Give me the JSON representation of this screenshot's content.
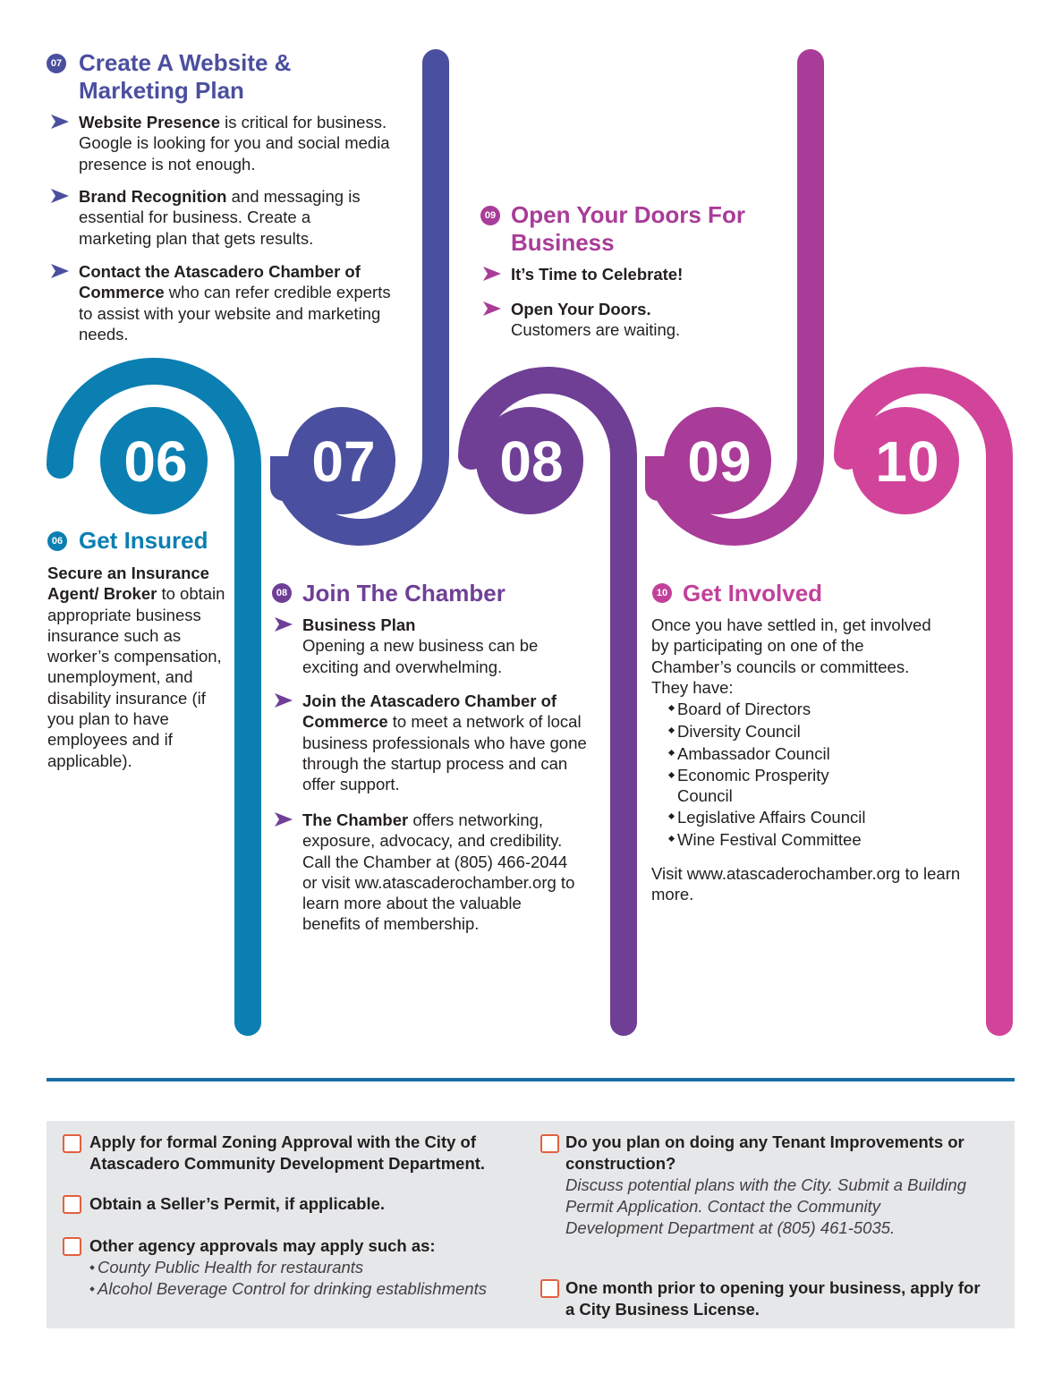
{
  "sections": [
    {
      "badge": "07",
      "title": "Create A Website & Marketing Plan",
      "items": [
        {
          "lead": "Website Presence",
          "text": "is critical for business. Google is looking for you and social media presence is not enough."
        },
        {
          "lead": "Brand Recognition",
          "text": "and messaging is essential for business. Create a marketing plan that gets results."
        },
        {
          "lead": "Contact the Atascadero Chamber of Commerce",
          "text": "who can refer credible experts to assist with your website and marketing needs."
        }
      ]
    },
    {
      "badge": "09",
      "title": "Open Your Doors For Business",
      "items": [
        {
          "lead": "It’s Time to Celebrate!"
        },
        {
          "lead": "Open Your Doors.",
          "text": "Customers are waiting."
        }
      ]
    },
    {
      "badge": "06",
      "title": "Get Insured",
      "lead": "Secure an Insurance Agent/ Broker",
      "text": "to obtain appropriate business insurance such as worker’s compensation, unemployment, and disability insurance (if you plan to have employees and if applicable)."
    },
    {
      "badge": "08",
      "title": "Join The Chamber",
      "items": [
        {
          "lead": "Business Plan",
          "text": "Opening a new business can be exciting and overwhelming."
        },
        {
          "lead": "Join the Atascadero Chamber of Commerce",
          "text": "to meet a network of local business professionals who have gone through the startup process and can offer support."
        },
        {
          "lead": "The Chamber",
          "text": "offers networking, exposure, advocacy, and credibility. Call the Chamber at (805) 466-2044 or visit ww.atascaderochamber.org to learn more about the valuable benefits of membership."
        }
      ]
    },
    {
      "badge": "10",
      "title": "Get Involved",
      "intro": "Once you have settled in, get involved by participating on one of the Chamber’s councils or committees.",
      "list_title": "They have:",
      "list": [
        "Board of Directors",
        "Diversity Council",
        "Ambassador Council",
        "Economic Prosperity Council",
        "Legislative Affairs Council",
        "Wine Festival Committee"
      ],
      "outro": "Visit www.atascaderochamber.org to learn more."
    }
  ],
  "steps": [
    "06",
    "07",
    "08",
    "09",
    "10"
  ],
  "checklist": {
    "left": [
      {
        "text": "Apply for formal Zoning Approval with the City of Atascadero Community Development Department."
      },
      {
        "text": "Obtain a Seller’s Permit, if applicable."
      },
      {
        "text": "Other agency approvals may apply such as:",
        "notes": [
          "County Public Health for restaurants",
          "Alcohol Beverage Control for drinking establishments"
        ]
      }
    ],
    "right": [
      {
        "text": "Do you plan on doing any Tenant Improvements or construction?",
        "note": "Discuss potential plans with the City. Submit a Building Permit Application. Contact the Community Development Department at (805) 461-5035."
      },
      {
        "text": "One month prior to opening your business, apply for a City Business License."
      }
    ]
  }
}
